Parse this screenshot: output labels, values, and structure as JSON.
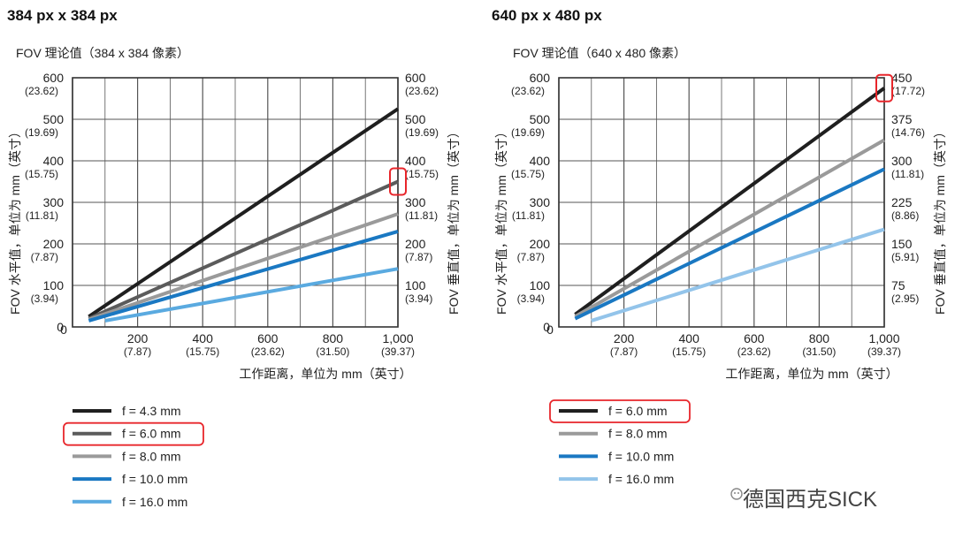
{
  "watermark": "德国西克SICK",
  "colors": {
    "grid": "#555555"
  },
  "chart_data": [
    {
      "type": "line",
      "title": "384 px x 384 px",
      "subtitle": "FOV 理论值（384 x 384 像素）",
      "xlabel": "工作距离，单位为 mm（英寸）",
      "ylabel": "FOV 水平值，单位为 mm（英寸）",
      "y2label": "FOV 垂直值，单位为 mm（英寸）",
      "xlim": [
        0,
        1000
      ],
      "ylim": [
        0,
        600
      ],
      "y2lim": [
        0,
        600
      ],
      "x_ticks": [
        {
          "value": 0,
          "label": "0",
          "sub": ""
        },
        {
          "value": 200,
          "label": "200",
          "sub": "(7.87)"
        },
        {
          "value": 400,
          "label": "400",
          "sub": "(15.75)"
        },
        {
          "value": 600,
          "label": "600",
          "sub": "(23.62)"
        },
        {
          "value": 800,
          "label": "800",
          "sub": "(31.50)"
        },
        {
          "value": 1000,
          "label": "1,000",
          "sub": "(39.37)"
        }
      ],
      "y_ticks": [
        {
          "value": 0,
          "label": "0",
          "sub": ""
        },
        {
          "value": 100,
          "label": "100",
          "sub": "(3.94)"
        },
        {
          "value": 200,
          "label": "200",
          "sub": "(7.87)"
        },
        {
          "value": 300,
          "label": "300",
          "sub": "(11.81)"
        },
        {
          "value": 400,
          "label": "400",
          "sub": "(15.75)"
        },
        {
          "value": 500,
          "label": "500",
          "sub": "(19.69)"
        },
        {
          "value": 600,
          "label": "600",
          "sub": "(23.62)"
        }
      ],
      "y2_ticks": [
        {
          "value": 100,
          "label": "100",
          "sub": "(3.94)"
        },
        {
          "value": 200,
          "label": "200",
          "sub": "(7.87)"
        },
        {
          "value": 300,
          "label": "300",
          "sub": "(11.81)"
        },
        {
          "value": 400,
          "label": "400",
          "sub": "(15.75)"
        },
        {
          "value": 500,
          "label": "500",
          "sub": "(19.69)"
        },
        {
          "value": 600,
          "label": "600",
          "sub": "(23.62)"
        }
      ],
      "highlight": {
        "series": "f = 6.0 mm",
        "x": 1000,
        "y": 350
      },
      "series": [
        {
          "name": "f = 4.3 mm",
          "color": "#1f1f1f",
          "x": [
            50,
            1000
          ],
          "y": [
            25,
            525
          ],
          "highlighted": false
        },
        {
          "name": "f = 6.0 mm",
          "color": "#5b5b5b",
          "x": [
            50,
            1000
          ],
          "y": [
            20,
            350
          ],
          "highlighted": true
        },
        {
          "name": "f = 8.0 mm",
          "color": "#9a9a9a",
          "x": [
            50,
            1000
          ],
          "y": [
            18,
            272
          ],
          "highlighted": false
        },
        {
          "name": "f = 10.0 mm",
          "color": "#1a78c2",
          "x": [
            50,
            1000
          ],
          "y": [
            15,
            230
          ],
          "highlighted": false
        },
        {
          "name": "f = 16.0 mm",
          "color": "#5aaae0",
          "x": [
            100,
            1000
          ],
          "y": [
            15,
            140
          ],
          "highlighted": false
        }
      ]
    },
    {
      "type": "line",
      "title": "640 px x 480 px",
      "subtitle": "FOV 理论值（640 x 480 像素）",
      "xlabel": "工作距离，单位为 mm（英寸）",
      "ylabel": "FOV 水平值，单位为 mm（英寸）",
      "y2label": "FOV 垂直值，单位为 mm（英寸）",
      "xlim": [
        0,
        1000
      ],
      "ylim": [
        0,
        600
      ],
      "y2lim": [
        0,
        450
      ],
      "x_ticks": [
        {
          "value": 0,
          "label": "0",
          "sub": ""
        },
        {
          "value": 200,
          "label": "200",
          "sub": "(7.87)"
        },
        {
          "value": 400,
          "label": "400",
          "sub": "(15.75)"
        },
        {
          "value": 600,
          "label": "600",
          "sub": "(23.62)"
        },
        {
          "value": 800,
          "label": "800",
          "sub": "(31.50)"
        },
        {
          "value": 1000,
          "label": "1,000",
          "sub": "(39.37)"
        }
      ],
      "y_ticks": [
        {
          "value": 0,
          "label": "0",
          "sub": ""
        },
        {
          "value": 100,
          "label": "100",
          "sub": "(3.94)"
        },
        {
          "value": 200,
          "label": "200",
          "sub": "(7.87)"
        },
        {
          "value": 300,
          "label": "300",
          "sub": "(11.81)"
        },
        {
          "value": 400,
          "label": "400",
          "sub": "(15.75)"
        },
        {
          "value": 500,
          "label": "500",
          "sub": "(19.69)"
        },
        {
          "value": 600,
          "label": "600",
          "sub": "(23.62)"
        }
      ],
      "y2_ticks": [
        {
          "value": 75,
          "label": "75",
          "sub": "(2.95)"
        },
        {
          "value": 150,
          "label": "150",
          "sub": "(5.91)"
        },
        {
          "value": 225,
          "label": "225",
          "sub": "(8.86)"
        },
        {
          "value": 300,
          "label": "300",
          "sub": "(11.81)"
        },
        {
          "value": 375,
          "label": "375",
          "sub": "(14.76)"
        },
        {
          "value": 450,
          "label": "450",
          "sub": "(17.72)"
        }
      ],
      "highlight": {
        "series": "f = 6.0 mm",
        "x": 1000,
        "y": 575
      },
      "series": [
        {
          "name": "f = 6.0 mm",
          "color": "#1f1f1f",
          "x": [
            50,
            1000
          ],
          "y": [
            30,
            575
          ],
          "highlighted": true
        },
        {
          "name": "f = 8.0 mm",
          "color": "#9a9a9a",
          "x": [
            50,
            1000
          ],
          "y": [
            25,
            450
          ],
          "highlighted": false
        },
        {
          "name": "f = 10.0 mm",
          "color": "#1a78c2",
          "x": [
            50,
            1000
          ],
          "y": [
            20,
            380
          ],
          "highlighted": false
        },
        {
          "name": "f = 16.0 mm",
          "color": "#93c4ea",
          "x": [
            100,
            1000
          ],
          "y": [
            15,
            235
          ],
          "highlighted": false
        }
      ]
    }
  ]
}
